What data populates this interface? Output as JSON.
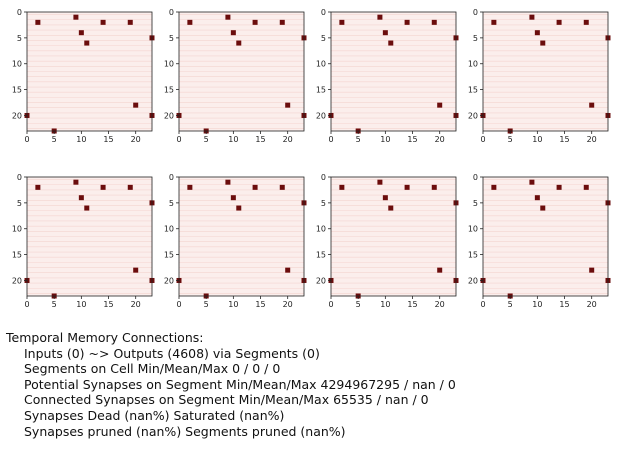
{
  "chart_data": {
    "type": "scatter",
    "panel_count": 8,
    "xlim": [
      0,
      23
    ],
    "ylim": [
      23,
      0
    ],
    "x_ticks": [
      0,
      5,
      10,
      15,
      20
    ],
    "y_ticks": [
      0,
      5,
      10,
      15,
      20
    ],
    "background_color": "#fbeeec",
    "gridline_color": "#f4d4d0",
    "point_color": "#6b0d0d",
    "points": [
      {
        "x": 2,
        "y": 2
      },
      {
        "x": 9,
        "y": 1
      },
      {
        "x": 10,
        "y": 4
      },
      {
        "x": 11,
        "y": 6
      },
      {
        "x": 14,
        "y": 2
      },
      {
        "x": 19,
        "y": 2
      },
      {
        "x": 23,
        "y": 5
      },
      {
        "x": 20,
        "y": 18
      },
      {
        "x": 0,
        "y": 20
      },
      {
        "x": 23,
        "y": 20
      },
      {
        "x": 5,
        "y": 23
      }
    ]
  },
  "report": {
    "title": "Temporal Memory Connections:",
    "lines": [
      "Inputs (0) ~> Outputs (4608) via Segments (0)",
      "Segments on Cell Min/Mean/Max 0 / 0 / 0",
      "Potential Synapses on Segment Min/Mean/Max 4294967295 / nan / 0",
      "Connected Synapses on Segment Min/Mean/Max 65535 / nan / 0",
      "Synapses Dead (nan%) Saturated (nan%)",
      "Synapses pruned (nan%) Segments pruned (nan%)"
    ]
  }
}
